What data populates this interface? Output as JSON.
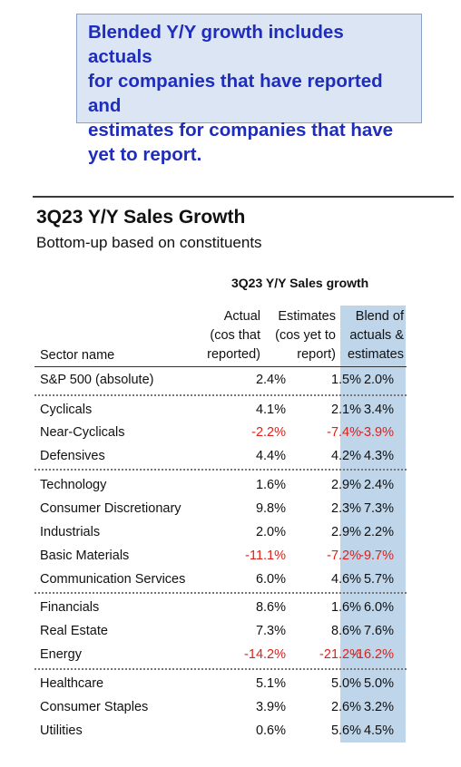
{
  "callout": {
    "line1": "Blended Y/Y growth includes actuals",
    "line2": "for companies that have reported and",
    "line3": "estimates for companies that have",
    "line4": "yet to report."
  },
  "title": "3Q23 Y/Y Sales Growth",
  "subtitle": "Bottom-up based on constituents",
  "table": {
    "title": "3Q23 Y/Y Sales growth",
    "columns": {
      "sector": "Sector name",
      "actual": [
        "Actual",
        "(cos that",
        "reported)"
      ],
      "estimates": [
        "Estimates",
        "(cos yet to",
        "report)"
      ],
      "blend": [
        "Blend of",
        "actuals &",
        "estimates"
      ]
    },
    "rows": [
      {
        "name": "S&P 500 (absolute)",
        "actual": "2.4%",
        "estimates": "1.5%",
        "blend": "2.0%"
      },
      {
        "name": "Cyclicals",
        "actual": "4.1%",
        "estimates": "2.1%",
        "blend": "3.4%"
      },
      {
        "name": "Near-Cyclicals",
        "actual": "-2.2%",
        "estimates": "-7.4%",
        "blend": "-3.9%"
      },
      {
        "name": "Defensives",
        "actual": "4.4%",
        "estimates": "4.2%",
        "blend": "4.3%"
      },
      {
        "name": "Technology",
        "actual": "1.6%",
        "estimates": "2.9%",
        "blend": "2.4%"
      },
      {
        "name": "Consumer Discretionary",
        "actual": "9.8%",
        "estimates": "2.3%",
        "blend": "7.3%"
      },
      {
        "name": "Industrials",
        "actual": "2.0%",
        "estimates": "2.9%",
        "blend": "2.2%"
      },
      {
        "name": "Basic Materials",
        "actual": "-11.1%",
        "estimates": "-7.2%",
        "blend": "-9.7%"
      },
      {
        "name": "Communication Services",
        "actual": "6.0%",
        "estimates": "4.6%",
        "blend": "5.7%"
      },
      {
        "name": "Financials",
        "actual": "8.6%",
        "estimates": "1.6%",
        "blend": "6.0%"
      },
      {
        "name": "Real Estate",
        "actual": "7.3%",
        "estimates": "8.6%",
        "blend": "7.6%"
      },
      {
        "name": "Energy",
        "actual": "-14.2%",
        "estimates": "-21.2%",
        "blend": "-16.2%"
      },
      {
        "name": "Healthcare",
        "actual": "5.1%",
        "estimates": "5.0%",
        "blend": "5.0%"
      },
      {
        "name": "Consumer Staples",
        "actual": "3.9%",
        "estimates": "2.6%",
        "blend": "3.2%"
      },
      {
        "name": "Utilities",
        "actual": "0.6%",
        "estimates": "5.6%",
        "blend": "4.5%"
      }
    ]
  },
  "colors": {
    "callout_text": "#1f2dbd",
    "callout_bg": "#dbe5f4",
    "blend_column_bg": "#bed5ea",
    "negative": "#e0201a"
  }
}
